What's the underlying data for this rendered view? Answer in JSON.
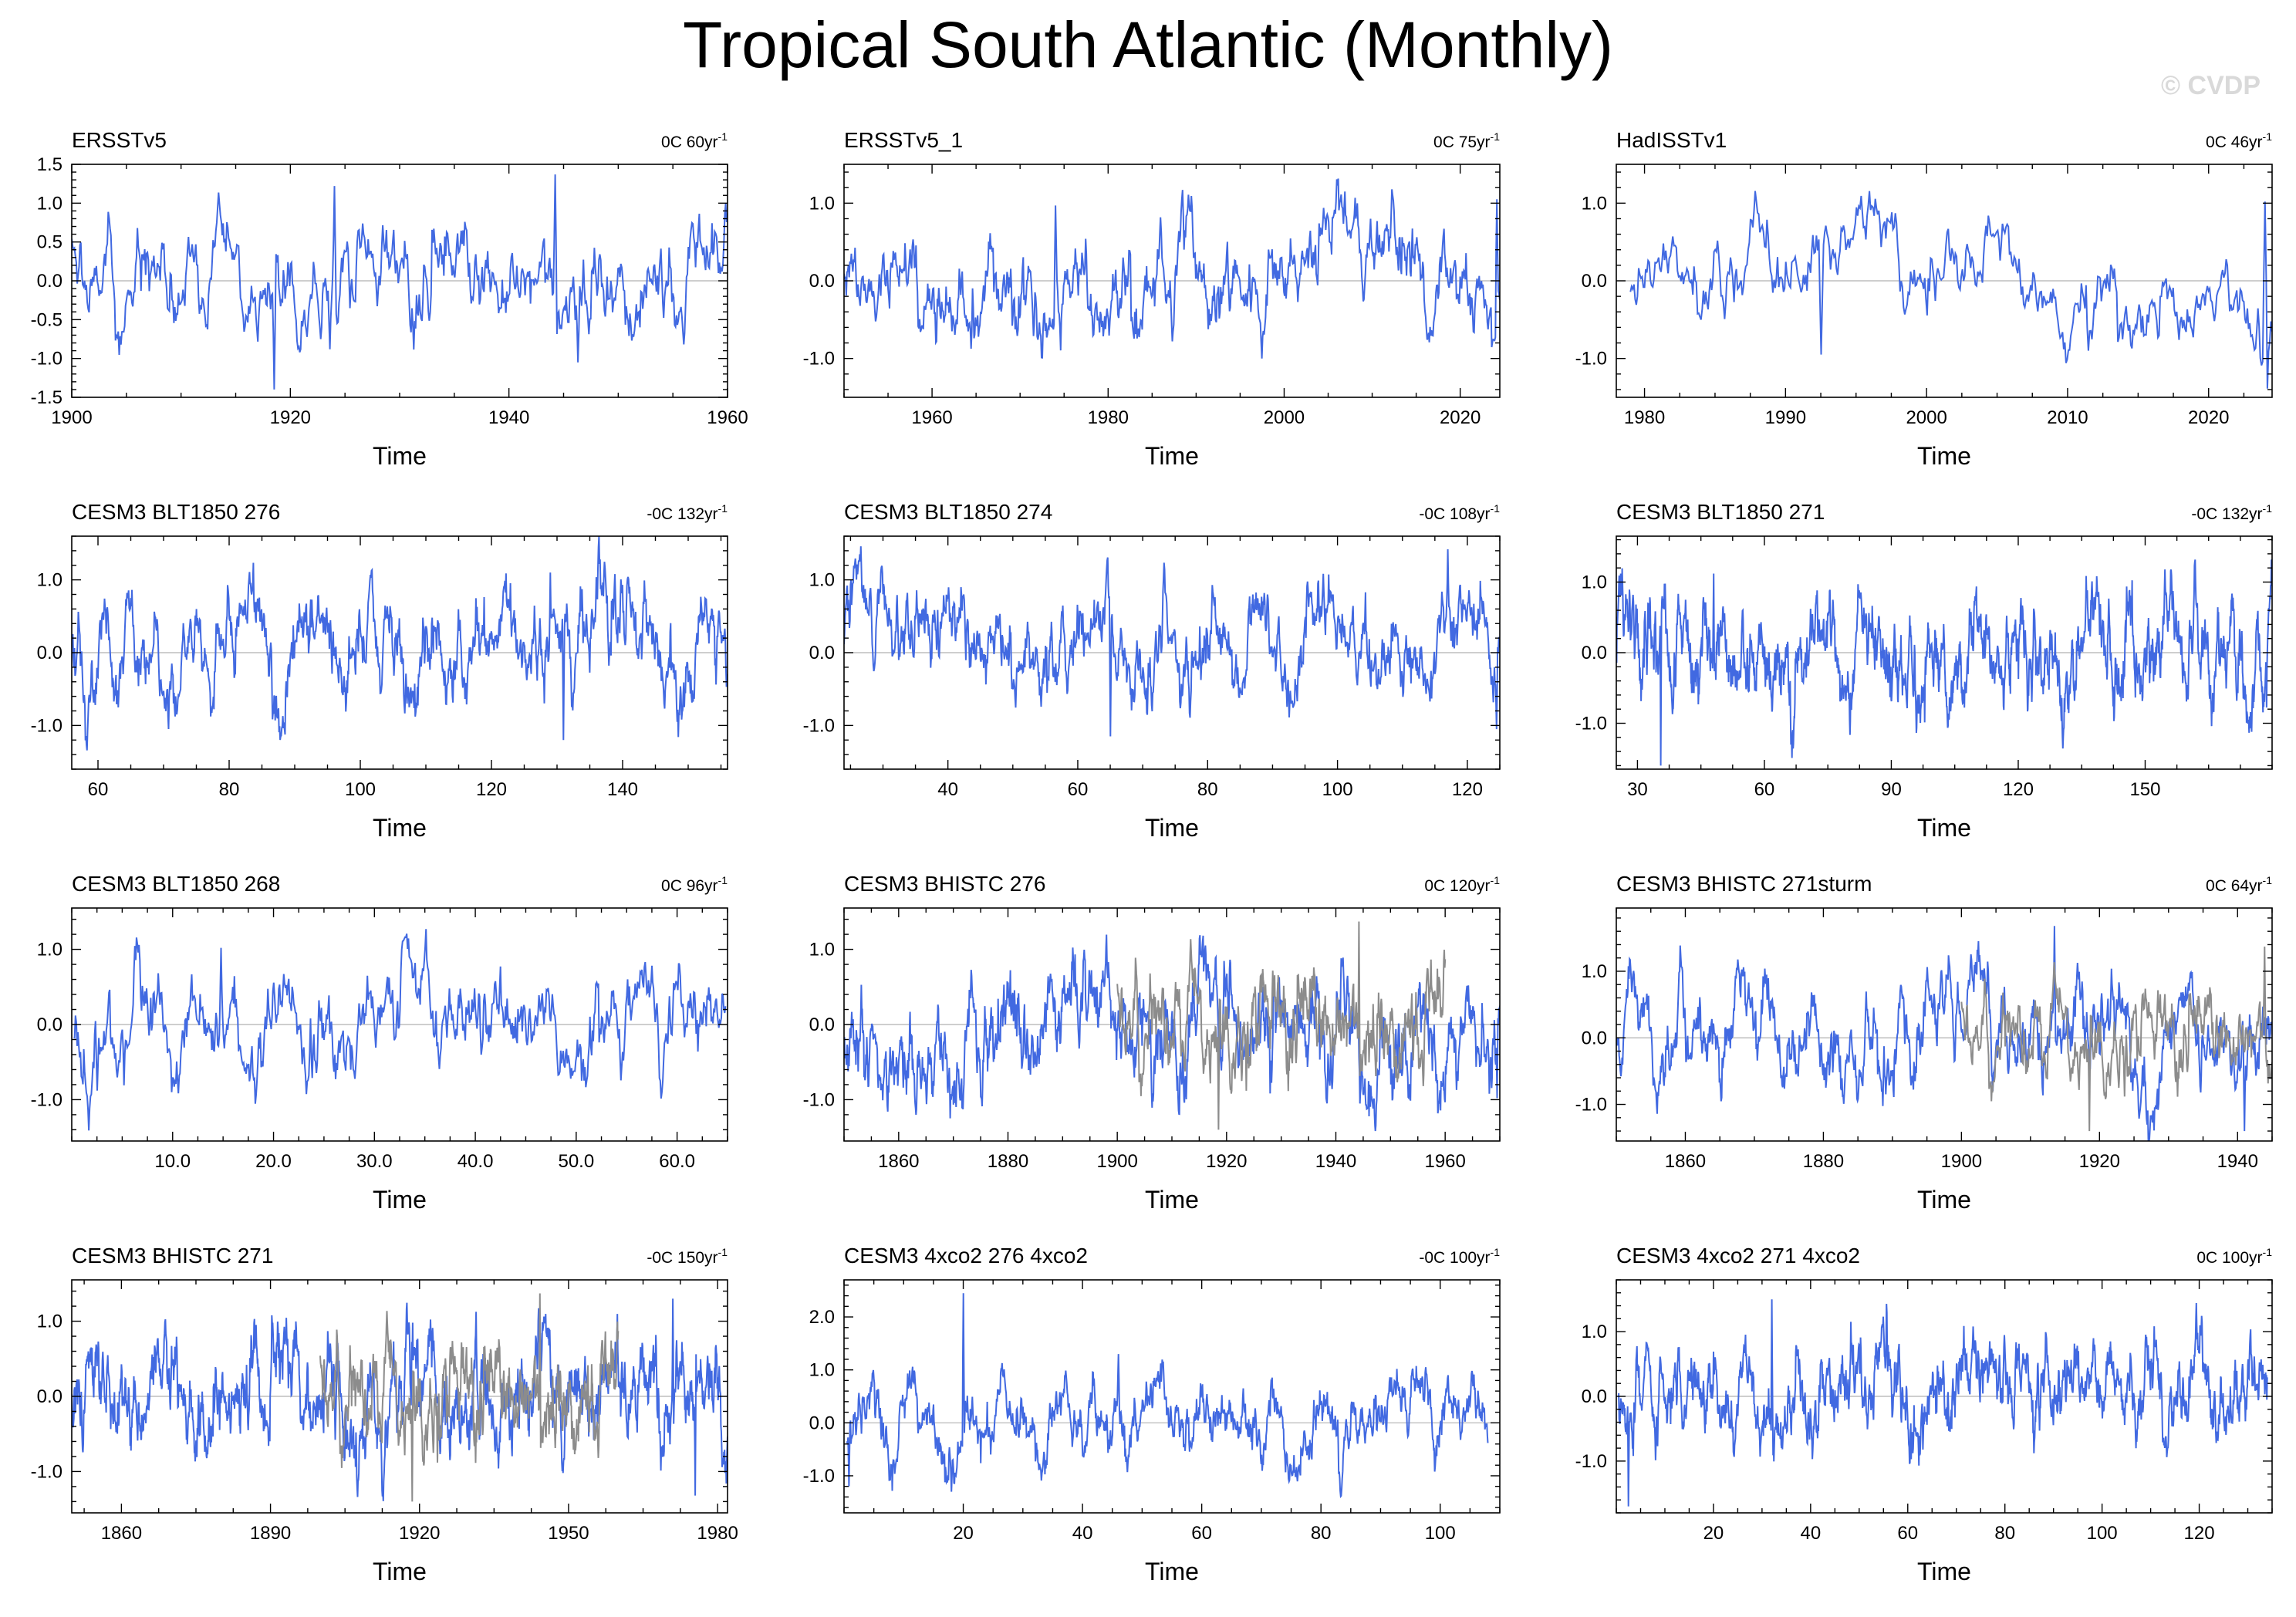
{
  "figure": {
    "title": "Tropical South Atlantic (Monthly)",
    "watermark": "© CVDP",
    "colors": {
      "series": "#4169e1",
      "reference": "#8c8c8c",
      "zero_line": "#b0b0b0",
      "frame": "#000000"
    }
  },
  "chart_data": [
    {
      "type": "line",
      "title": "ERSSTv5",
      "trend_label": "0C 60yr",
      "trend_exp": "-1",
      "xlabel": "Time",
      "xlim": [
        1900,
        1960
      ],
      "ylim": [
        -1.5,
        1.5
      ],
      "xticks": [
        1900,
        1920,
        1940,
        1960
      ],
      "yticks": [
        -1.5,
        -1.0,
        -0.5,
        0.0,
        0.5,
        1.0,
        1.5
      ],
      "ytick_labels": [
        "-1.5",
        "-1.0",
        "-0.5",
        "0.0",
        "0.5",
        "1.0",
        "1.5"
      ],
      "series": [
        {
          "name": "ERSSTv5",
          "x0": 1900,
          "x1": 1960,
          "n": 720,
          "seed": 11,
          "amp": 0.42,
          "spikes": [
            [
              1918.5,
              -1.4
            ],
            [
              1924.0,
              1.22
            ],
            [
              1944.2,
              1.37
            ],
            [
              1946.3,
              -1.05
            ]
          ]
        }
      ]
    },
    {
      "type": "line",
      "title": "ERSSTv5_1",
      "trend_label": "0C 75yr",
      "trend_exp": "-1",
      "xlabel": "Time",
      "xlim": [
        1950,
        2024.5
      ],
      "ylim": [
        -1.5,
        1.5
      ],
      "xticks": [
        1960,
        1980,
        2000,
        2020
      ],
      "yticks": [
        -1.0,
        0.0,
        1.0
      ],
      "ytick_labels": [
        "-1.0",
        "0.0",
        "1.0"
      ],
      "series": [
        {
          "name": "ERSSTv5_1",
          "x0": 1950,
          "x1": 2024.5,
          "n": 894,
          "seed": 12,
          "amp": 0.38,
          "spikes": [
            [
              1974.0,
              0.97
            ],
            [
              1997.5,
              -1.0
            ],
            [
              2024.2,
              1.05
            ]
          ]
        }
      ]
    },
    {
      "type": "line",
      "title": "HadISSTv1",
      "trend_label": "0C 46yr",
      "trend_exp": "-1",
      "xlabel": "Time",
      "xlim": [
        1978,
        2024.5
      ],
      "ylim": [
        -1.5,
        1.5
      ],
      "xticks": [
        1980,
        1990,
        2000,
        2010,
        2020
      ],
      "yticks": [
        -1.0,
        0.0,
        1.0
      ],
      "ytick_labels": [
        "-1.0",
        "0.0",
        "1.0"
      ],
      "series": [
        {
          "name": "HadISSTv1",
          "x0": 1979,
          "x1": 2024.5,
          "n": 546,
          "seed": 13,
          "amp": 0.36,
          "spikes": [
            [
              1992.5,
              -0.95
            ],
            [
              1997.8,
              0.87
            ],
            [
              2011.5,
              -0.9
            ],
            [
              2024.0,
              1.02
            ]
          ]
        }
      ]
    },
    {
      "type": "line",
      "title": "CESM3 BLT1850 276",
      "trend_label": "-0C 132yr",
      "trend_exp": "-1",
      "xlabel": "Time",
      "xlim": [
        56,
        156
      ],
      "ylim": [
        -1.6,
        1.6
      ],
      "xticks": [
        60,
        80,
        100,
        120,
        140
      ],
      "yticks": [
        -1.0,
        0.0,
        1.0
      ],
      "ytick_labels": [
        "-1.0",
        "0.0",
        "1.0"
      ],
      "series": [
        {
          "name": "CESM3 BLT1850 276",
          "x0": 56,
          "x1": 156,
          "n": 1200,
          "seed": 21,
          "amp": 0.42,
          "spikes": [
            [
              131.0,
              -1.2
            ],
            [
              129.0,
              1.1
            ]
          ]
        }
      ]
    },
    {
      "type": "line",
      "title": "CESM3 BLT1850 274",
      "trend_label": "-0C 108yr",
      "trend_exp": "-1",
      "xlabel": "Time",
      "xlim": [
        24,
        125
      ],
      "ylim": [
        -1.6,
        1.6
      ],
      "xticks": [
        40,
        60,
        80,
        100,
        120
      ],
      "yticks": [
        -1.0,
        0.0,
        1.0
      ],
      "ytick_labels": [
        "-1.0",
        "0.0",
        "1.0"
      ],
      "series": [
        {
          "name": "CESM3 BLT1850 274",
          "x0": 24,
          "x1": 125,
          "n": 1212,
          "seed": 22,
          "amp": 0.4,
          "spikes": [
            [
              117.0,
              1.42
            ],
            [
              124.5,
              -1.05
            ],
            [
              65.0,
              -1.15
            ]
          ]
        }
      ]
    },
    {
      "type": "line",
      "title": "CESM3 BLT1850 271",
      "trend_label": "-0C 132yr",
      "trend_exp": "-1",
      "xlabel": "Time",
      "xlim": [
        25,
        180
      ],
      "ylim": [
        -1.65,
        1.65
      ],
      "xticks": [
        30,
        60,
        90,
        120,
        150
      ],
      "yticks": [
        -1.0,
        0.0,
        1.0
      ],
      "ytick_labels": [
        "-1.0",
        "0.0",
        "1.0"
      ],
      "series": [
        {
          "name": "CESM3 BLT1850 271",
          "x0": 25,
          "x1": 180,
          "n": 1800,
          "seed": 23,
          "amp": 0.42,
          "spikes": [
            [
              26.0,
              1.12
            ],
            [
              35.5,
              -1.6
            ],
            [
              48.0,
              1.12
            ]
          ]
        }
      ]
    },
    {
      "type": "line",
      "title": "CESM3 BLT1850 268",
      "trend_label": "0C 96yr",
      "trend_exp": "-1",
      "xlabel": "Time",
      "xlim": [
        0,
        65
      ],
      "ylim": [
        -1.55,
        1.55
      ],
      "xticks": [
        10,
        20,
        30,
        40,
        50,
        60
      ],
      "yticks": [
        -1.0,
        0.0,
        1.0
      ],
      "ytick_labels": [
        "-1.0",
        "0.0",
        "1.0"
      ],
      "xtick_labels": [
        "10.0",
        "20.0",
        "30.0",
        "40.0",
        "50.0",
        "60.0"
      ],
      "series": [
        {
          "name": "CESM3 BLT1850 268",
          "x0": 0.2,
          "x1": 64.8,
          "n": 780,
          "seed": 24,
          "amp": 0.42,
          "spikes": [
            [
              14.8,
              1.02
            ],
            [
              2.5,
              -0.88
            ]
          ]
        }
      ]
    },
    {
      "type": "line",
      "title": "CESM3 BHISTC 276",
      "trend_label": "0C 120yr",
      "trend_exp": "-1",
      "xlabel": "Time",
      "xlim": [
        1850,
        1970
      ],
      "ylim": [
        -1.55,
        1.55
      ],
      "xticks": [
        1860,
        1880,
        1900,
        1920,
        1940,
        1960
      ],
      "yticks": [
        -1.0,
        0.0,
        1.0
      ],
      "ytick_labels": [
        "-1.0",
        "0.0",
        "1.0"
      ],
      "series": [
        {
          "name": "CESM3 BHISTC 276",
          "x0": 1850,
          "x1": 1970,
          "n": 1440,
          "seed": 31,
          "amp": 0.42,
          "spikes": [
            [
              1969.5,
              -0.98
            ]
          ]
        },
        {
          "name": "ERSSTv5",
          "reference": true,
          "x0": 1900,
          "x1": 1960,
          "n": 720,
          "seed": 11,
          "amp": 0.42,
          "spikes": [
            [
              1918.5,
              -1.4
            ],
            [
              1944.2,
              1.37
            ]
          ]
        }
      ]
    },
    {
      "type": "line",
      "title": "CESM3 BHISTC 271sturm",
      "trend_label": "0C 64yr",
      "trend_exp": "-1",
      "xlabel": "Time",
      "xlim": [
        1850,
        1945
      ],
      "ylim": [
        -1.55,
        1.95
      ],
      "xticks": [
        1860,
        1880,
        1900,
        1920,
        1940
      ],
      "yticks": [
        -1.0,
        0.0,
        1.0
      ],
      "ytick_labels": [
        "-1.0",
        "0.0",
        "1.0"
      ],
      "series": [
        {
          "name": "CESM3 BHISTC 271sturm",
          "x0": 1850,
          "x1": 1945,
          "n": 1140,
          "seed": 32,
          "amp": 0.42,
          "spikes": [
            [
              1913.5,
              1.68
            ],
            [
              1941.0,
              -1.4
            ]
          ]
        },
        {
          "name": "ERSSTv5",
          "reference": true,
          "x0": 1900,
          "x1": 1945,
          "n": 540,
          "seed": 11,
          "amp": 0.42,
          "spikes": [
            [
              1918.5,
              -1.4
            ],
            [
              1943.9,
              1.37
            ]
          ]
        }
      ]
    },
    {
      "type": "line",
      "title": "CESM3 BHISTC 271",
      "trend_label": "-0C 150yr",
      "trend_exp": "-1",
      "xlabel": "Time",
      "xlim": [
        1850,
        1982
      ],
      "ylim": [
        -1.55,
        1.55
      ],
      "xticks": [
        1860,
        1890,
        1920,
        1950,
        1980
      ],
      "yticks": [
        -1.0,
        0.0,
        1.0
      ],
      "ytick_labels": [
        "-1.0",
        "0.0",
        "1.0"
      ],
      "series": [
        {
          "name": "CESM3 BHISTC 271",
          "x0": 1850,
          "x1": 1982,
          "n": 1584,
          "seed": 33,
          "amp": 0.42,
          "spikes": [
            [
              1975.5,
              -1.32
            ],
            [
              1971.0,
              1.3
            ]
          ]
        },
        {
          "name": "ERSSTv5",
          "reference": true,
          "x0": 1900,
          "x1": 1960,
          "n": 720,
          "seed": 11,
          "amp": 0.42,
          "spikes": [
            [
              1918.5,
              -1.4
            ],
            [
              1944.2,
              1.37
            ]
          ]
        }
      ]
    },
    {
      "type": "line",
      "title": "CESM3 4xco2 276 4xco2",
      "trend_label": "-0C 100yr",
      "trend_exp": "-1",
      "xlabel": "Time",
      "xlim": [
        0,
        110
      ],
      "ylim": [
        -1.7,
        2.7
      ],
      "xticks": [
        20,
        40,
        60,
        80,
        100
      ],
      "yticks": [
        -1.0,
        0.0,
        1.0,
        2.0
      ],
      "ytick_labels": [
        "-1.0",
        "0.0",
        "1.0",
        "2.0"
      ],
      "series": [
        {
          "name": "CESM3 4xco2 276 4xco2",
          "x0": 0.5,
          "x1": 108,
          "n": 1290,
          "seed": 41,
          "amp": 0.42,
          "spikes": [
            [
              20.0,
              2.45
            ],
            [
              0.8,
              -1.2
            ],
            [
              46.0,
              1.3
            ]
          ]
        }
      ]
    },
    {
      "type": "line",
      "title": "CESM3 4xco2 271 4xco2",
      "trend_label": "0C 100yr",
      "trend_exp": "-1",
      "xlabel": "Time",
      "xlim": [
        0,
        135
      ],
      "ylim": [
        -1.8,
        1.8
      ],
      "xticks": [
        20,
        40,
        60,
        80,
        100,
        120
      ],
      "yticks": [
        -1.0,
        0.0,
        1.0
      ],
      "ytick_labels": [
        "-1.0",
        "0.0",
        "1.0"
      ],
      "series": [
        {
          "name": "CESM3 4xco2 271 4xco2",
          "x0": 0.5,
          "x1": 134,
          "n": 1602,
          "seed": 42,
          "amp": 0.42,
          "spikes": [
            [
              32.0,
              1.5
            ],
            [
              2.5,
              -1.7
            ]
          ]
        }
      ]
    }
  ]
}
